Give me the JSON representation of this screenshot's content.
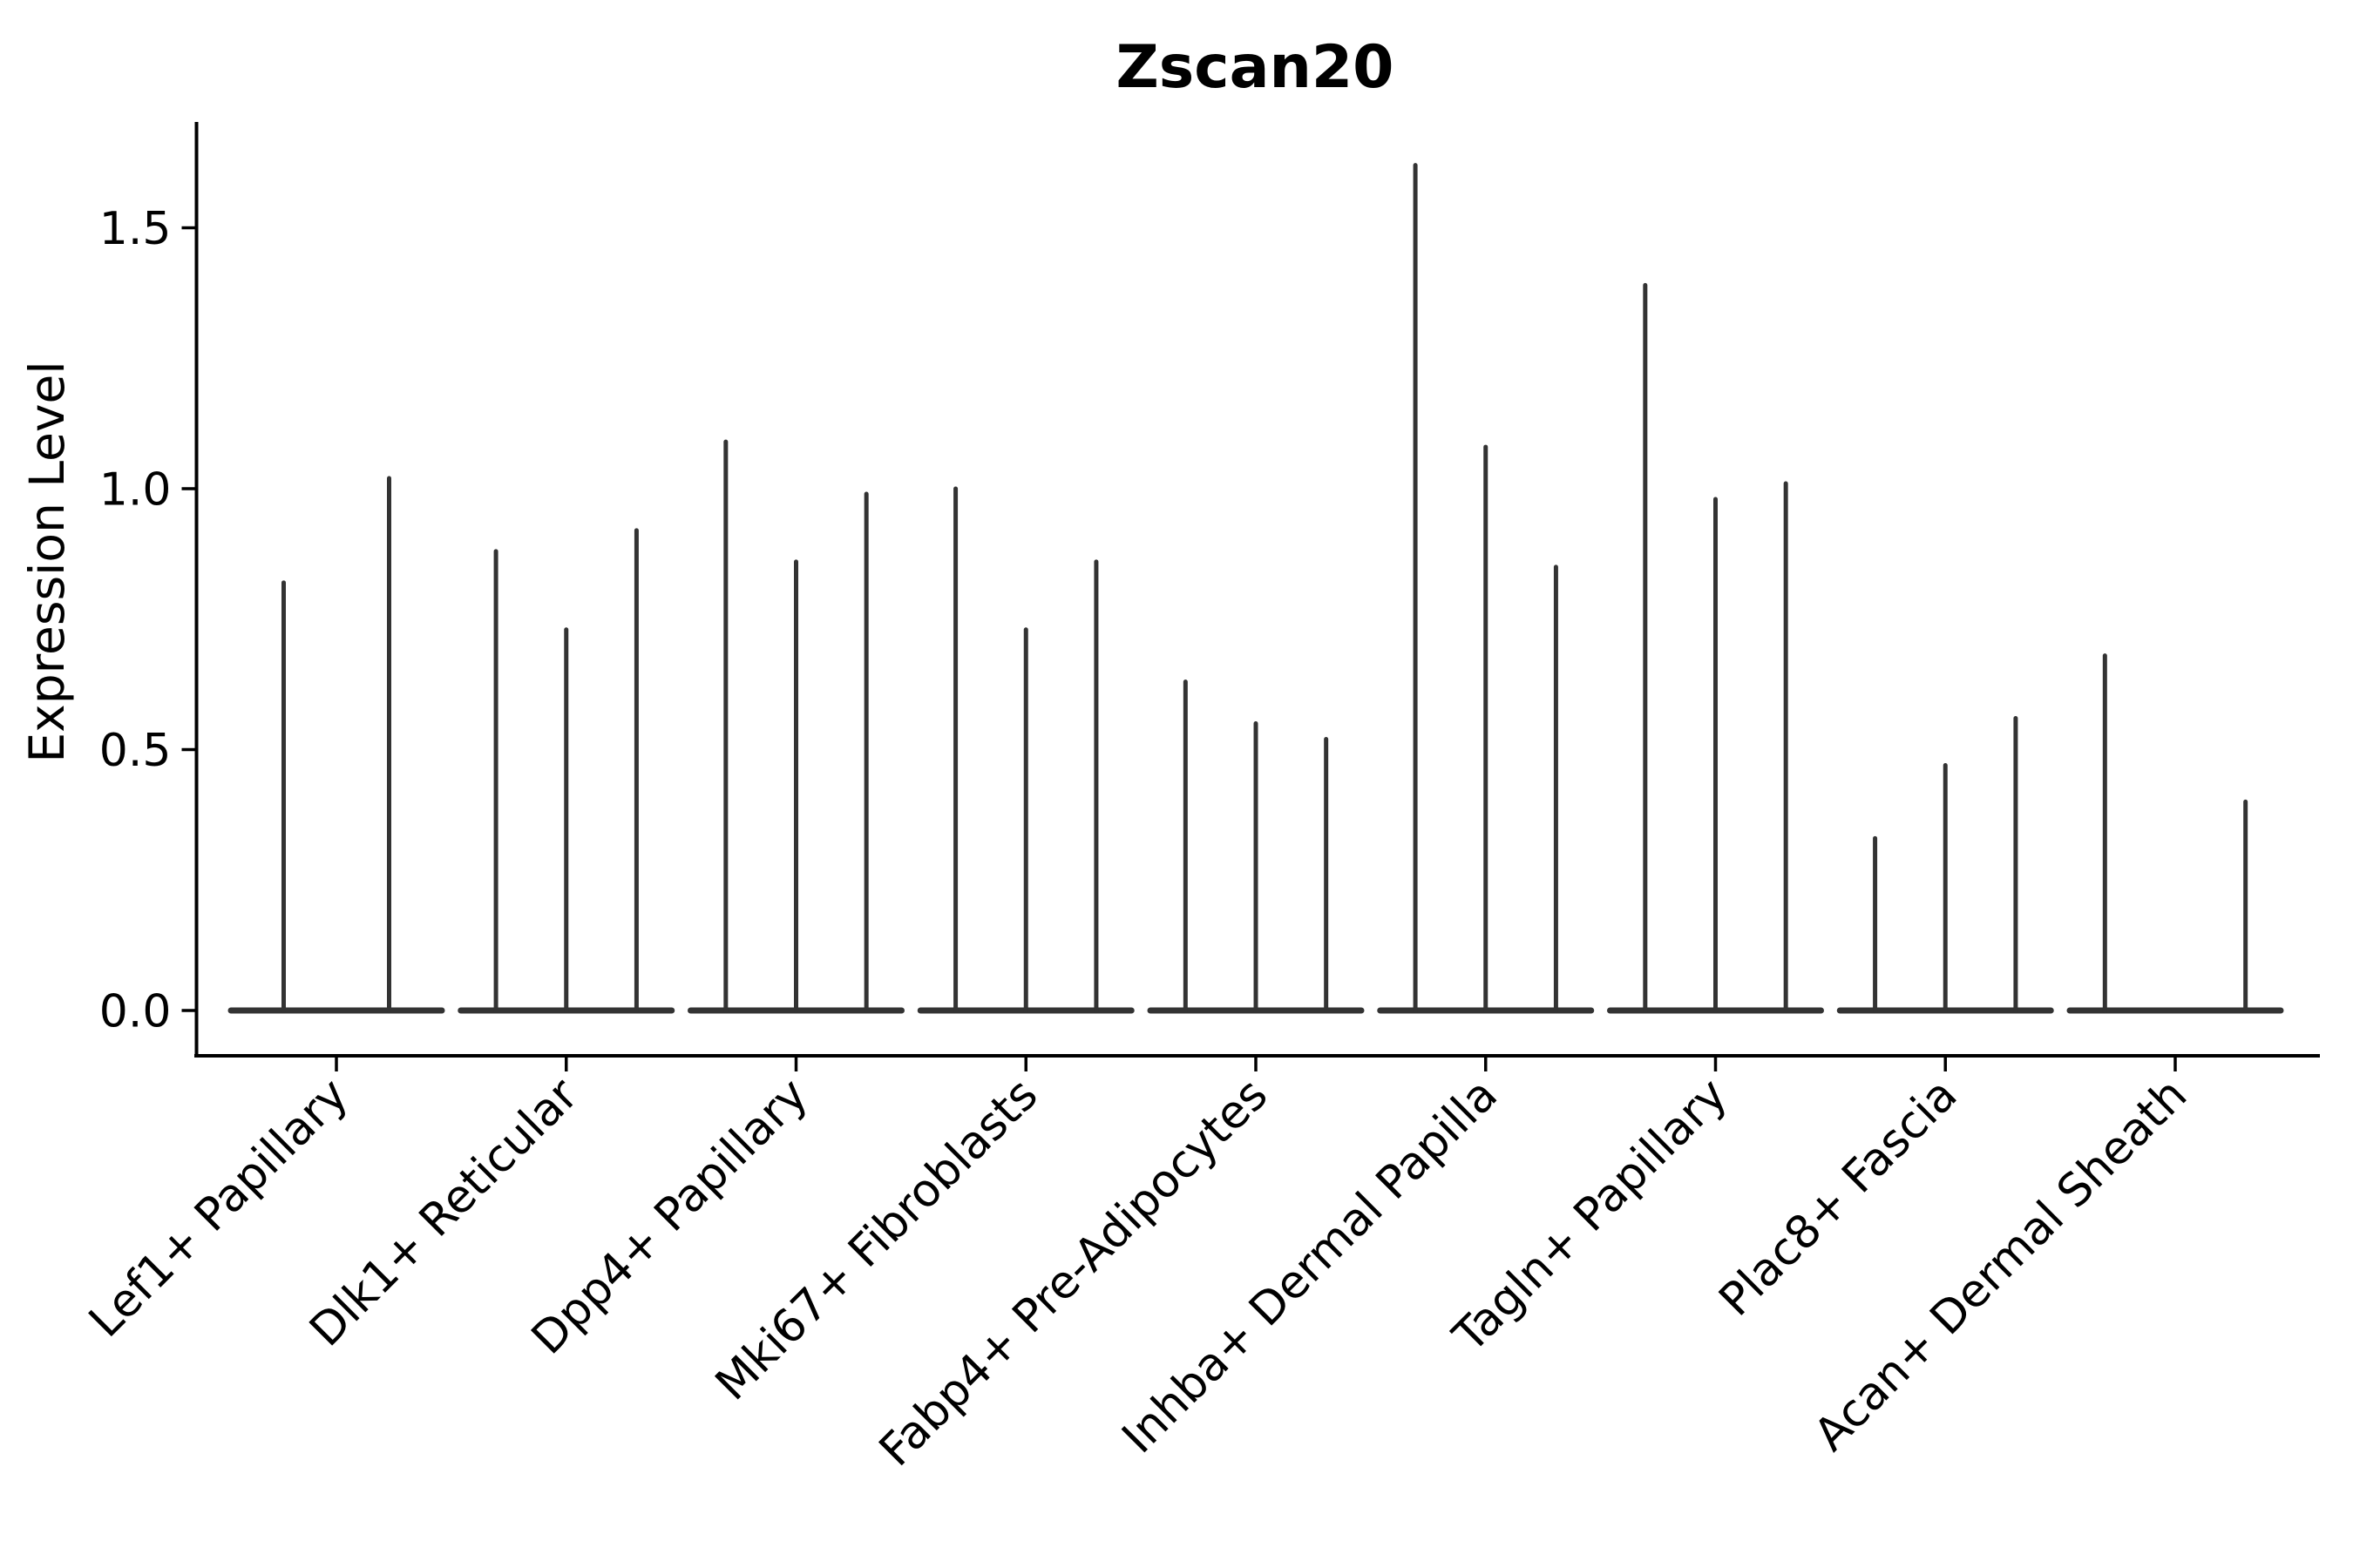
{
  "chart_data": {
    "type": "violin",
    "title": "Zscan20",
    "ylabel": "Expression Level",
    "xlabel": "",
    "ylim": [
      0,
      1.7
    ],
    "yticks": [
      0.0,
      0.5,
      1.0,
      1.5
    ],
    "ytick_labels": [
      "0.0",
      "0.5",
      "1.0",
      "1.5"
    ],
    "grid": false,
    "legend": "none",
    "categories": [
      "Lef1+ Papillary",
      "Dlk1+ Reticular",
      "Dpp4+ Papillary",
      "Mki67+ Fibroblasts",
      "Fabp4+ Pre-Adipocytes",
      "Inhba+ Dermal Papilla",
      "Tagln+ Papillary",
      "Plac8+ Fascia",
      "Acan+ Dermal Sheath"
    ],
    "groups": [
      {
        "label": "Lef1+ Papillary",
        "slots": 2,
        "violins": [
          {
            "slot": 0,
            "max": 0.82
          },
          {
            "slot": 1,
            "max": 1.02
          }
        ]
      },
      {
        "label": "Dlk1+ Reticular",
        "slots": 3,
        "violins": [
          {
            "slot": 0,
            "max": 0.88
          },
          {
            "slot": 1,
            "max": 0.73
          },
          {
            "slot": 2,
            "max": 0.92
          }
        ]
      },
      {
        "label": "Dpp4+ Papillary",
        "slots": 3,
        "violins": [
          {
            "slot": 0,
            "max": 1.09
          },
          {
            "slot": 1,
            "max": 0.86
          },
          {
            "slot": 2,
            "max": 0.99
          }
        ]
      },
      {
        "label": "Mki67+ Fibroblasts",
        "slots": 3,
        "violins": [
          {
            "slot": 0,
            "max": 1.0
          },
          {
            "slot": 1,
            "max": 0.73
          },
          {
            "slot": 2,
            "max": 0.86
          }
        ]
      },
      {
        "label": "Fabp4+ Pre-Adipocytes",
        "slots": 3,
        "violins": [
          {
            "slot": 0,
            "max": 0.63
          },
          {
            "slot": 1,
            "max": 0.55
          },
          {
            "slot": 2,
            "max": 0.52
          }
        ]
      },
      {
        "label": "Inhba+ Dermal Papilla",
        "slots": 3,
        "violins": [
          {
            "slot": 0,
            "max": 1.62
          },
          {
            "slot": 1,
            "max": 1.08
          },
          {
            "slot": 2,
            "max": 0.85
          }
        ]
      },
      {
        "label": "Tagln+ Papillary",
        "slots": 3,
        "violins": [
          {
            "slot": 0,
            "max": 1.39
          },
          {
            "slot": 1,
            "max": 0.98
          },
          {
            "slot": 2,
            "max": 1.01
          }
        ]
      },
      {
        "label": "Plac8+ Fascia",
        "slots": 3,
        "violins": [
          {
            "slot": 0,
            "max": 0.33
          },
          {
            "slot": 1,
            "max": 0.47
          },
          {
            "slot": 2,
            "max": 0.56
          }
        ]
      },
      {
        "label": "Acan+ Dermal Sheath",
        "slots": 3,
        "violins": [
          {
            "slot": 0,
            "max": 0.68
          },
          {
            "slot": 2,
            "max": 0.4
          }
        ]
      }
    ],
    "colors": {
      "violin": "#333333",
      "axis": "#000000",
      "text": "#000000",
      "background": "#ffffff"
    }
  }
}
